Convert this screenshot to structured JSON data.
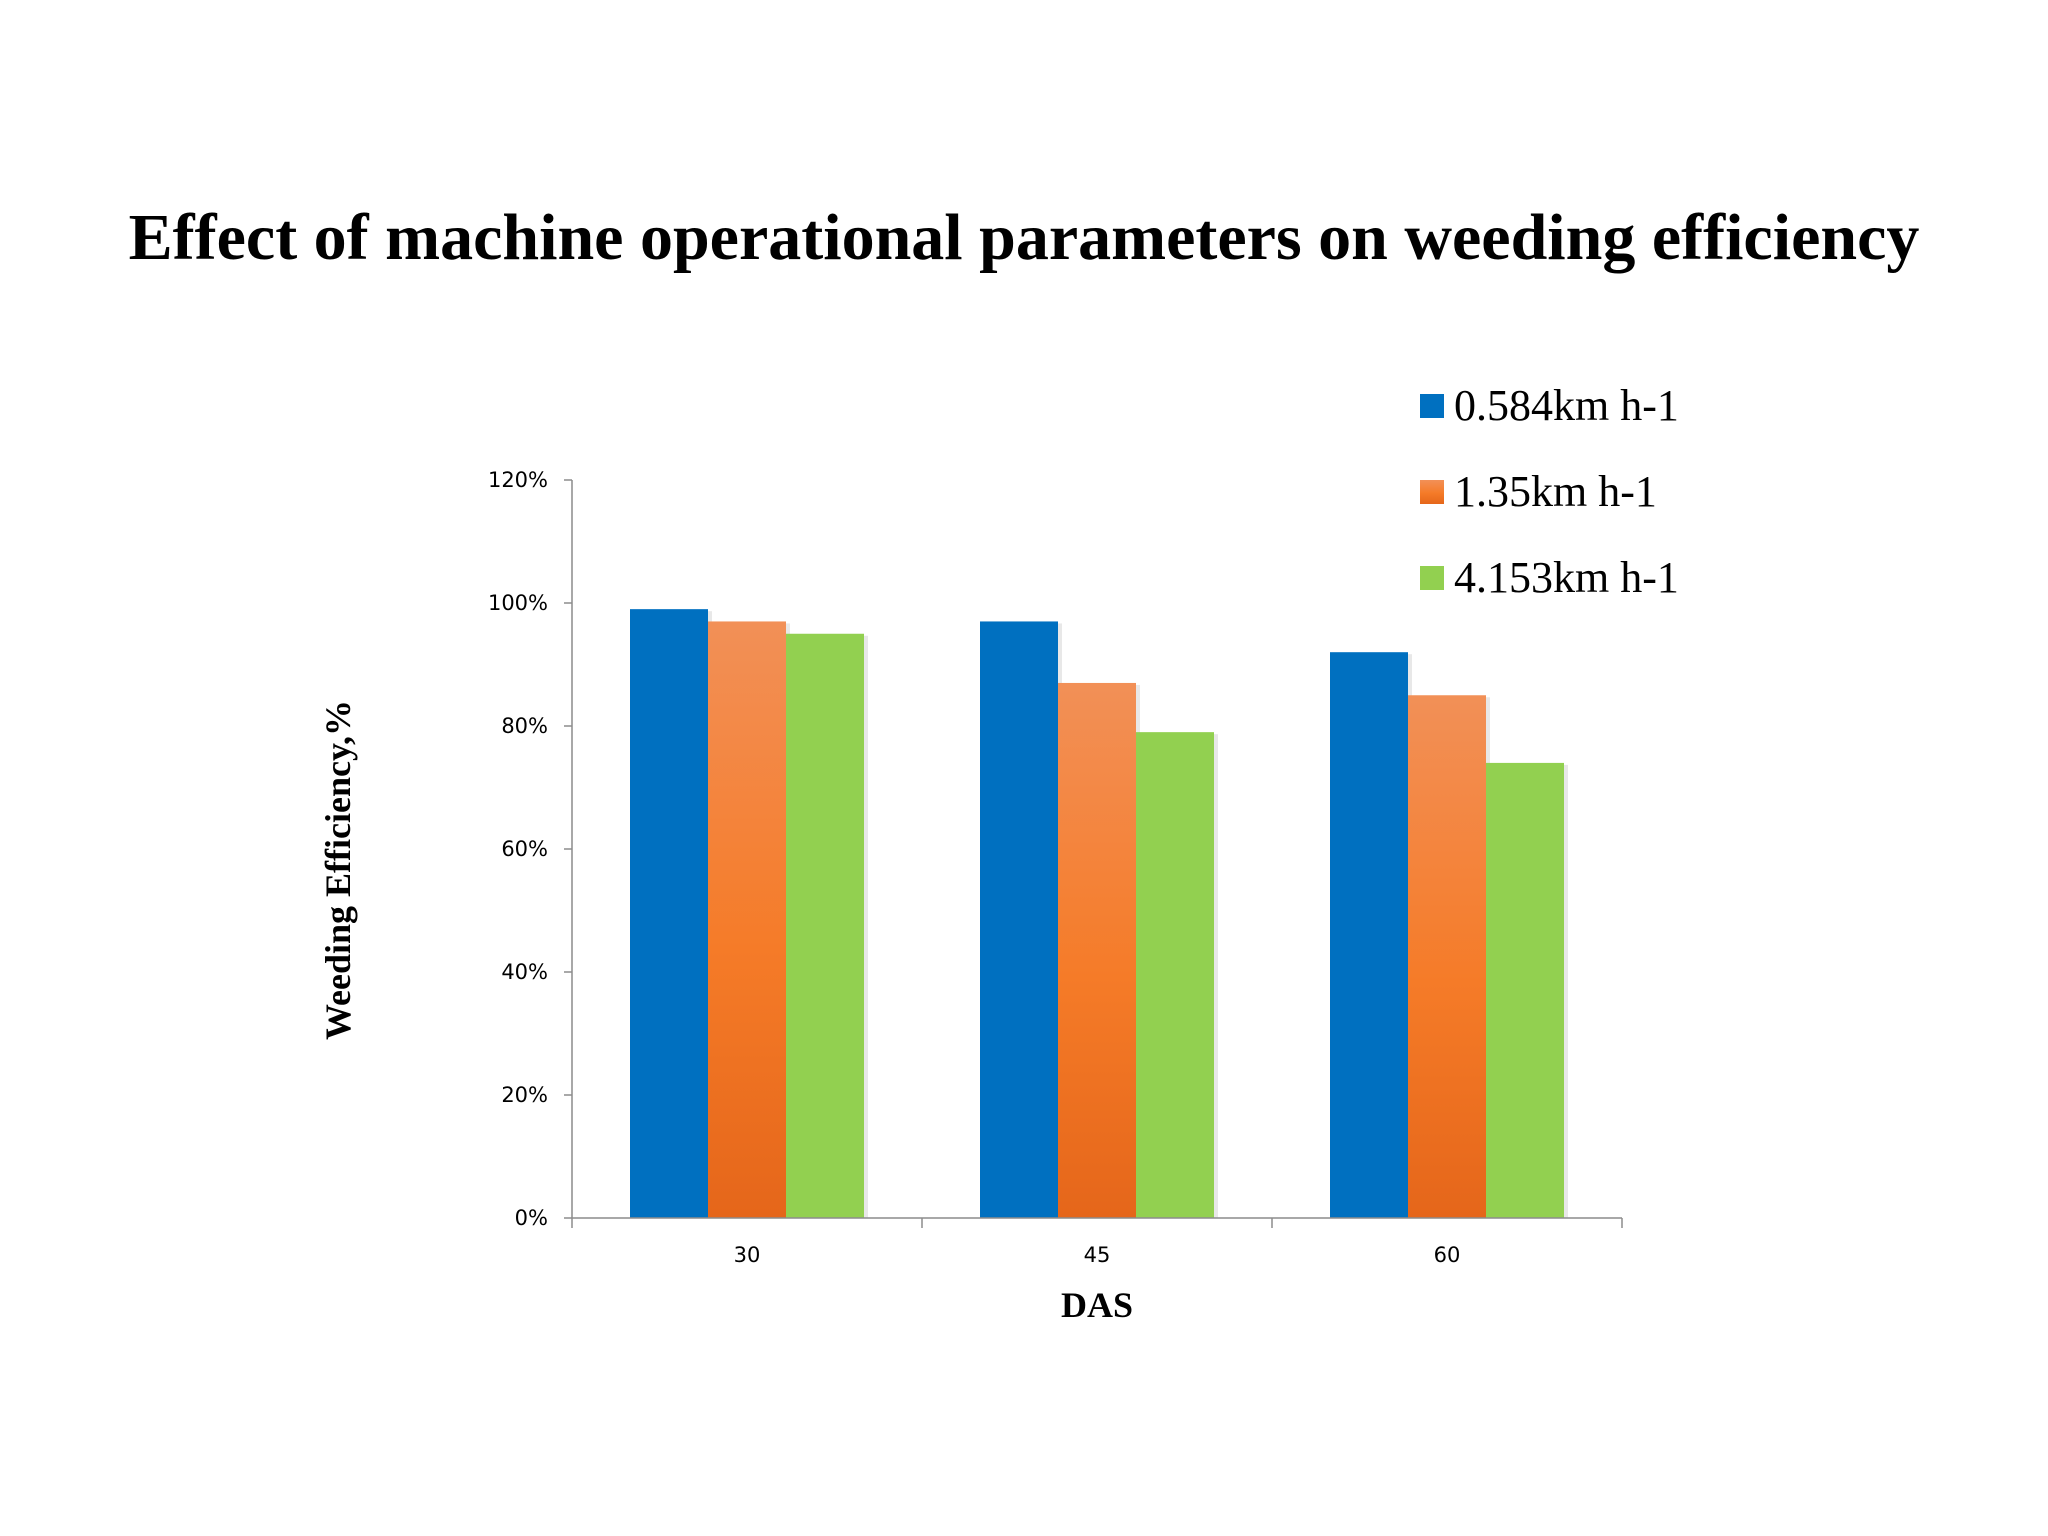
{
  "chart_data": {
    "type": "bar",
    "title": "Effect of machine operational parameters on weeding efficiency",
    "xlabel": "DAS",
    "ylabel": "Weeding Efficiency,%",
    "categories": [
      "30",
      "45",
      "60"
    ],
    "series": [
      {
        "name": "0.584km h-1",
        "values": [
          99,
          97,
          92
        ],
        "color": "#0070C0"
      },
      {
        "name": "1.35km h-1",
        "values": [
          97,
          87,
          85
        ],
        "color": "#F07830"
      },
      {
        "name": "4.153km h-1",
        "values": [
          95,
          79,
          74
        ],
        "color": "#92D050"
      }
    ],
    "ylim": [
      0,
      120
    ],
    "yticks": [
      0,
      20,
      40,
      60,
      80,
      100,
      120
    ],
    "ytick_labels": [
      "0%",
      "20%",
      "40%",
      "60%",
      "80%",
      "100%",
      "120%"
    ],
    "grid": false,
    "legend_position": "top-right"
  }
}
